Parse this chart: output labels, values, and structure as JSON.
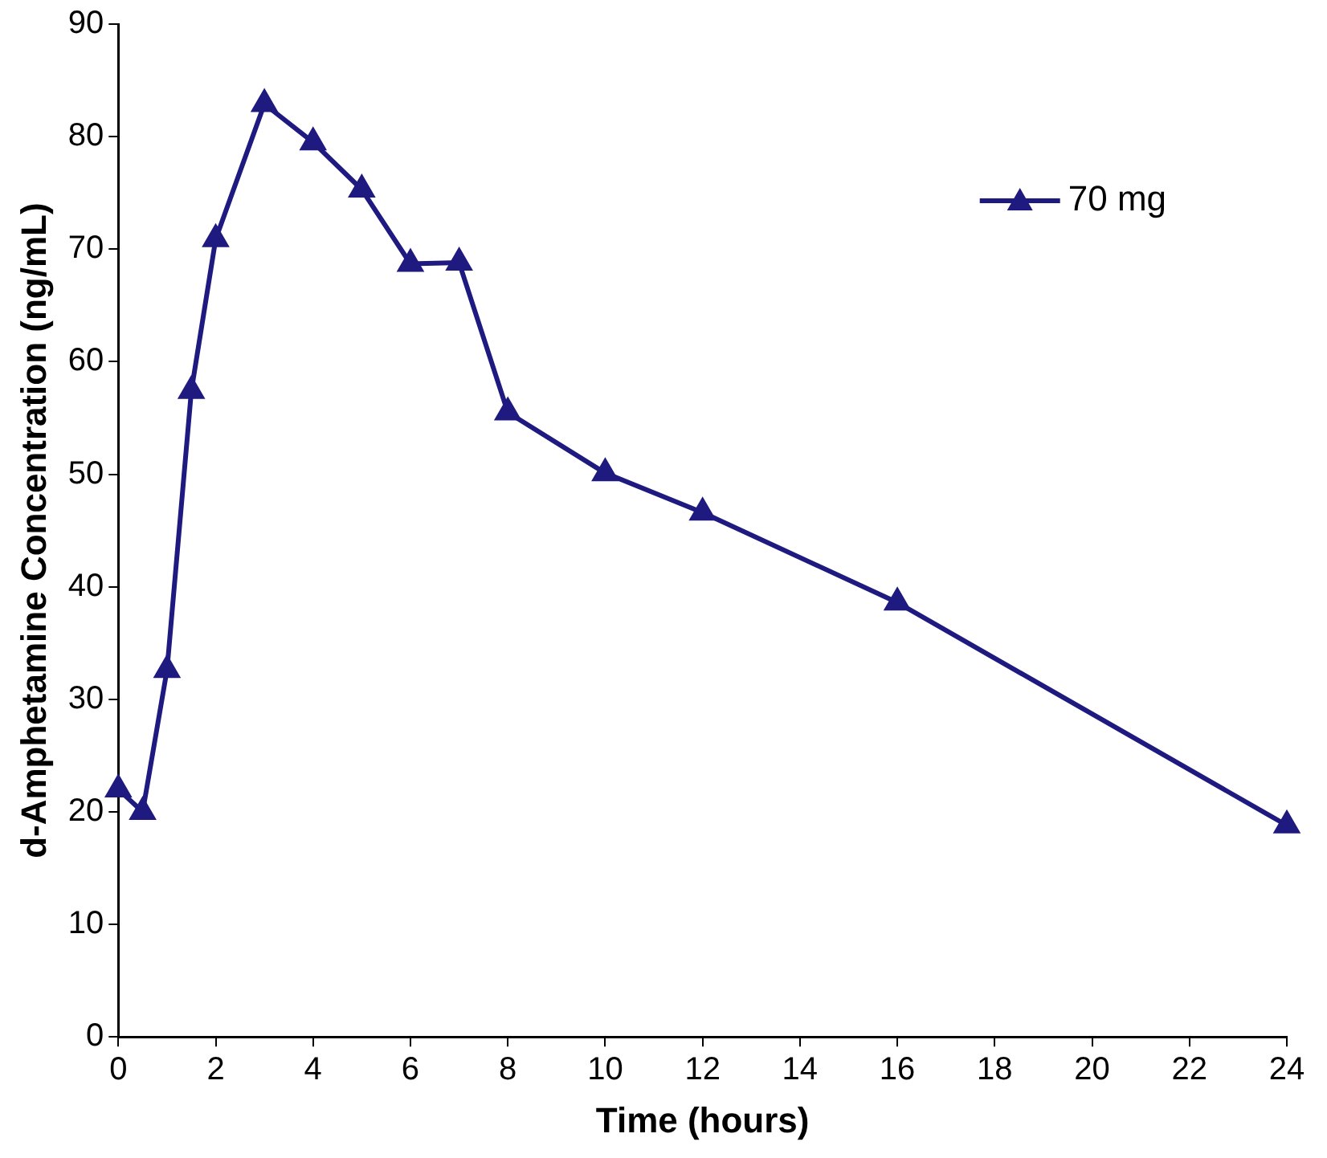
{
  "chart_data": {
    "type": "line",
    "xlabel": "Time (hours)",
    "ylabel": "d-Amphetamine Concentration (ng/mL)",
    "x": [
      0,
      0.5,
      1,
      1.5,
      2,
      3,
      4,
      5,
      6,
      7,
      8,
      10,
      12,
      16,
      24
    ],
    "series": [
      {
        "name": "70 mg",
        "color": "#1f1a80",
        "values": [
          22,
          20,
          32.6,
          57.4,
          70.9,
          82.9,
          79.5,
          75.3,
          68.7,
          68.8,
          55.5,
          50.1,
          46.6,
          38.6,
          18.8
        ]
      }
    ],
    "xlim": [
      0,
      24
    ],
    "xticks": [
      0,
      2,
      4,
      6,
      8,
      10,
      12,
      14,
      16,
      18,
      20,
      22,
      24
    ],
    "ylim": [
      0,
      90
    ],
    "yticks": [
      0,
      10,
      20,
      30,
      40,
      50,
      60,
      70,
      80,
      90
    ],
    "grid": false,
    "legend": "top right",
    "marker": "triangle",
    "line_style": "solid"
  }
}
